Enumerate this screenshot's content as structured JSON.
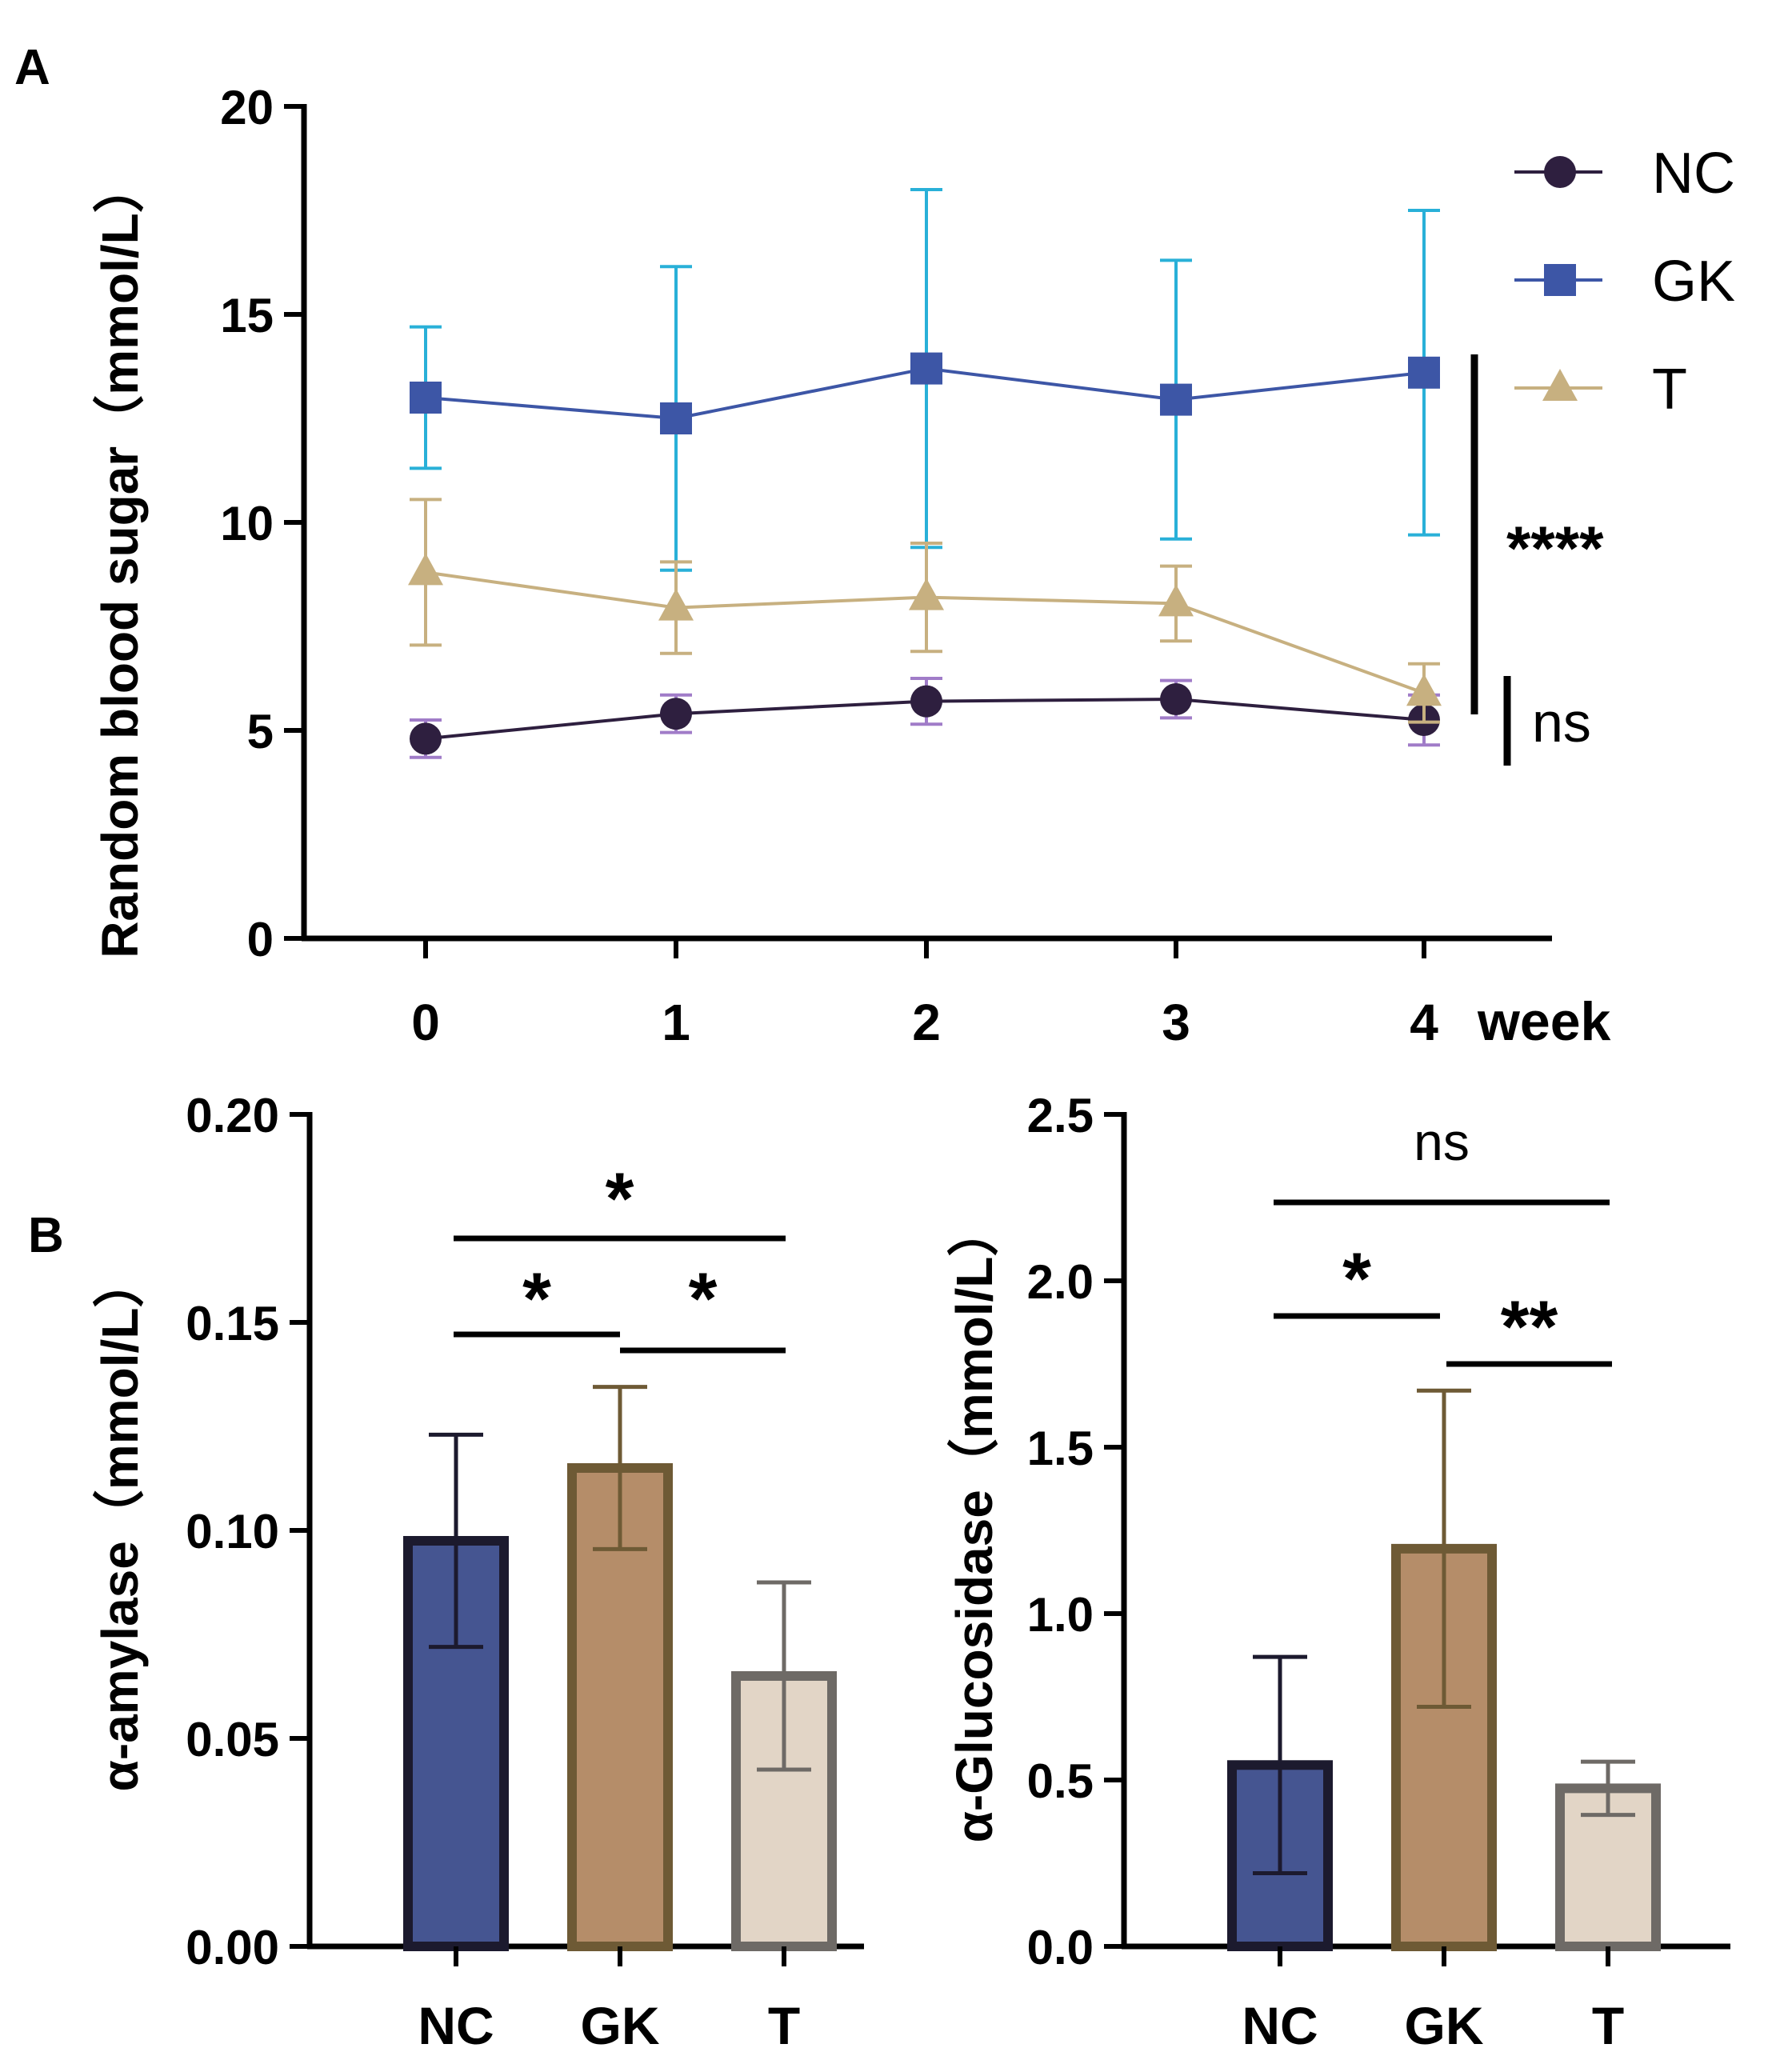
{
  "chart_data": [
    {
      "panel": "A",
      "type": "line",
      "xlabel": "week",
      "ylabel": "Random blood sugar（mmol/L）",
      "ylim": [
        0,
        20
      ],
      "yticks": [
        "0",
        "5",
        "10",
        "15",
        "20"
      ],
      "categories": [
        "0",
        "1",
        "2",
        "3",
        "4"
      ],
      "series": [
        {
          "name": "NC",
          "marker": "circle",
          "line_color": "#2e1f3f",
          "marker_color": "#2e1f3f",
          "err_color": "#a07cc8",
          "values": [
            4.8,
            5.4,
            5.7,
            5.75,
            5.25
          ],
          "err": [
            0.45,
            0.45,
            0.55,
            0.45,
            0.6
          ]
        },
        {
          "name": "GK",
          "marker": "square",
          "line_color": "#3d56a6",
          "marker_color": "#3d56a6",
          "err_color": "#29b0d8",
          "values": [
            13.0,
            12.5,
            13.7,
            12.95,
            13.6
          ],
          "err": [
            1.7,
            3.65,
            4.3,
            3.35,
            3.9
          ]
        },
        {
          "name": "T",
          "marker": "triangle",
          "line_color": "#c7b080",
          "marker_color": "#c7b080",
          "err_color": "#c7b080",
          "values": [
            8.8,
            7.95,
            8.2,
            8.05,
            5.9
          ],
          "err": [
            1.75,
            1.1,
            1.3,
            0.9,
            0.7
          ]
        }
      ],
      "annotations": [
        "****",
        "ns"
      ]
    },
    {
      "panel": "B",
      "type": "bar",
      "ylabel": "α-amylase（mmol/L）",
      "ylim": [
        0,
        0.2
      ],
      "yticks": [
        "0.00",
        "0.05",
        "0.10",
        "0.15",
        "0.20"
      ],
      "categories": [
        "NC",
        "GK",
        "T"
      ],
      "values": [
        0.0975,
        0.115,
        0.065
      ],
      "err": [
        0.0255,
        0.0195,
        0.0225
      ],
      "fill_colors": [
        "#455591",
        "#b58d69",
        "#e2d5c6"
      ],
      "edge_colors": [
        "#1c1a2e",
        "#6e5a35",
        "#6e6a66"
      ],
      "significance": [
        {
          "from": 0,
          "to": 1,
          "label": "*"
        },
        {
          "from": 1,
          "to": 2,
          "label": "*"
        },
        {
          "from": 0,
          "to": 2,
          "label": "*"
        }
      ]
    },
    {
      "type": "bar",
      "ylabel": "α-Glucosidase（mmol/L）",
      "ylim": [
        0,
        2.5
      ],
      "yticks": [
        "0.0",
        "0.5",
        "1.0",
        "1.5",
        "2.0",
        "2.5"
      ],
      "categories": [
        "NC",
        "GK",
        "T"
      ],
      "values": [
        0.545,
        1.195,
        0.475
      ],
      "err": [
        0.325,
        0.475,
        0.08
      ],
      "fill_colors": [
        "#455591",
        "#b58d69",
        "#e2d5c6"
      ],
      "edge_colors": [
        "#1c1a2e",
        "#6e5a35",
        "#6e6a66"
      ],
      "significance": [
        {
          "from": 0,
          "to": 1,
          "label": "*"
        },
        {
          "from": 1,
          "to": 2,
          "label": "**"
        },
        {
          "from": 0,
          "to": 2,
          "label": "ns"
        }
      ]
    }
  ]
}
